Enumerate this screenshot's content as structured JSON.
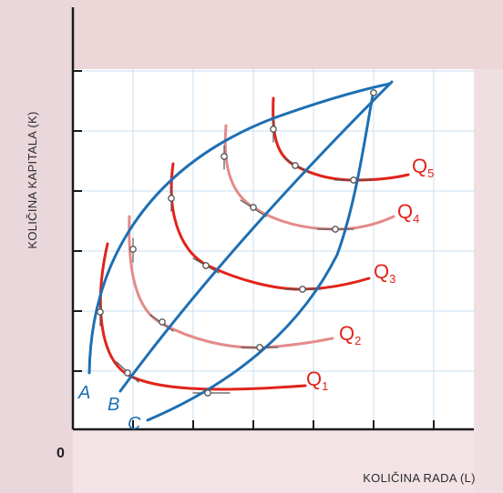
{
  "axes": {
    "y_label": "KOLIČINA KAPITALA (K)",
    "x_label": "KOLIČINA RADA (L)",
    "origin": "0"
  },
  "isoquants": [
    {
      "label": "Q",
      "sub": "1"
    },
    {
      "label": "Q",
      "sub": "2"
    },
    {
      "label": "Q",
      "sub": "3"
    },
    {
      "label": "Q",
      "sub": "4"
    },
    {
      "label": "Q",
      "sub": "5"
    }
  ],
  "expansion_paths": [
    {
      "label": "A"
    },
    {
      "label": "B"
    },
    {
      "label": "C"
    }
  ],
  "colors": {
    "background": "#f3e3e6",
    "top_band": "#ecd6d8",
    "plot_area": "#ffffff",
    "grid": "#c9dff2",
    "isoquant": "#e0241b",
    "isoquant_light": "#e58a8a",
    "expansion_path": "#1e6fb3"
  }
}
